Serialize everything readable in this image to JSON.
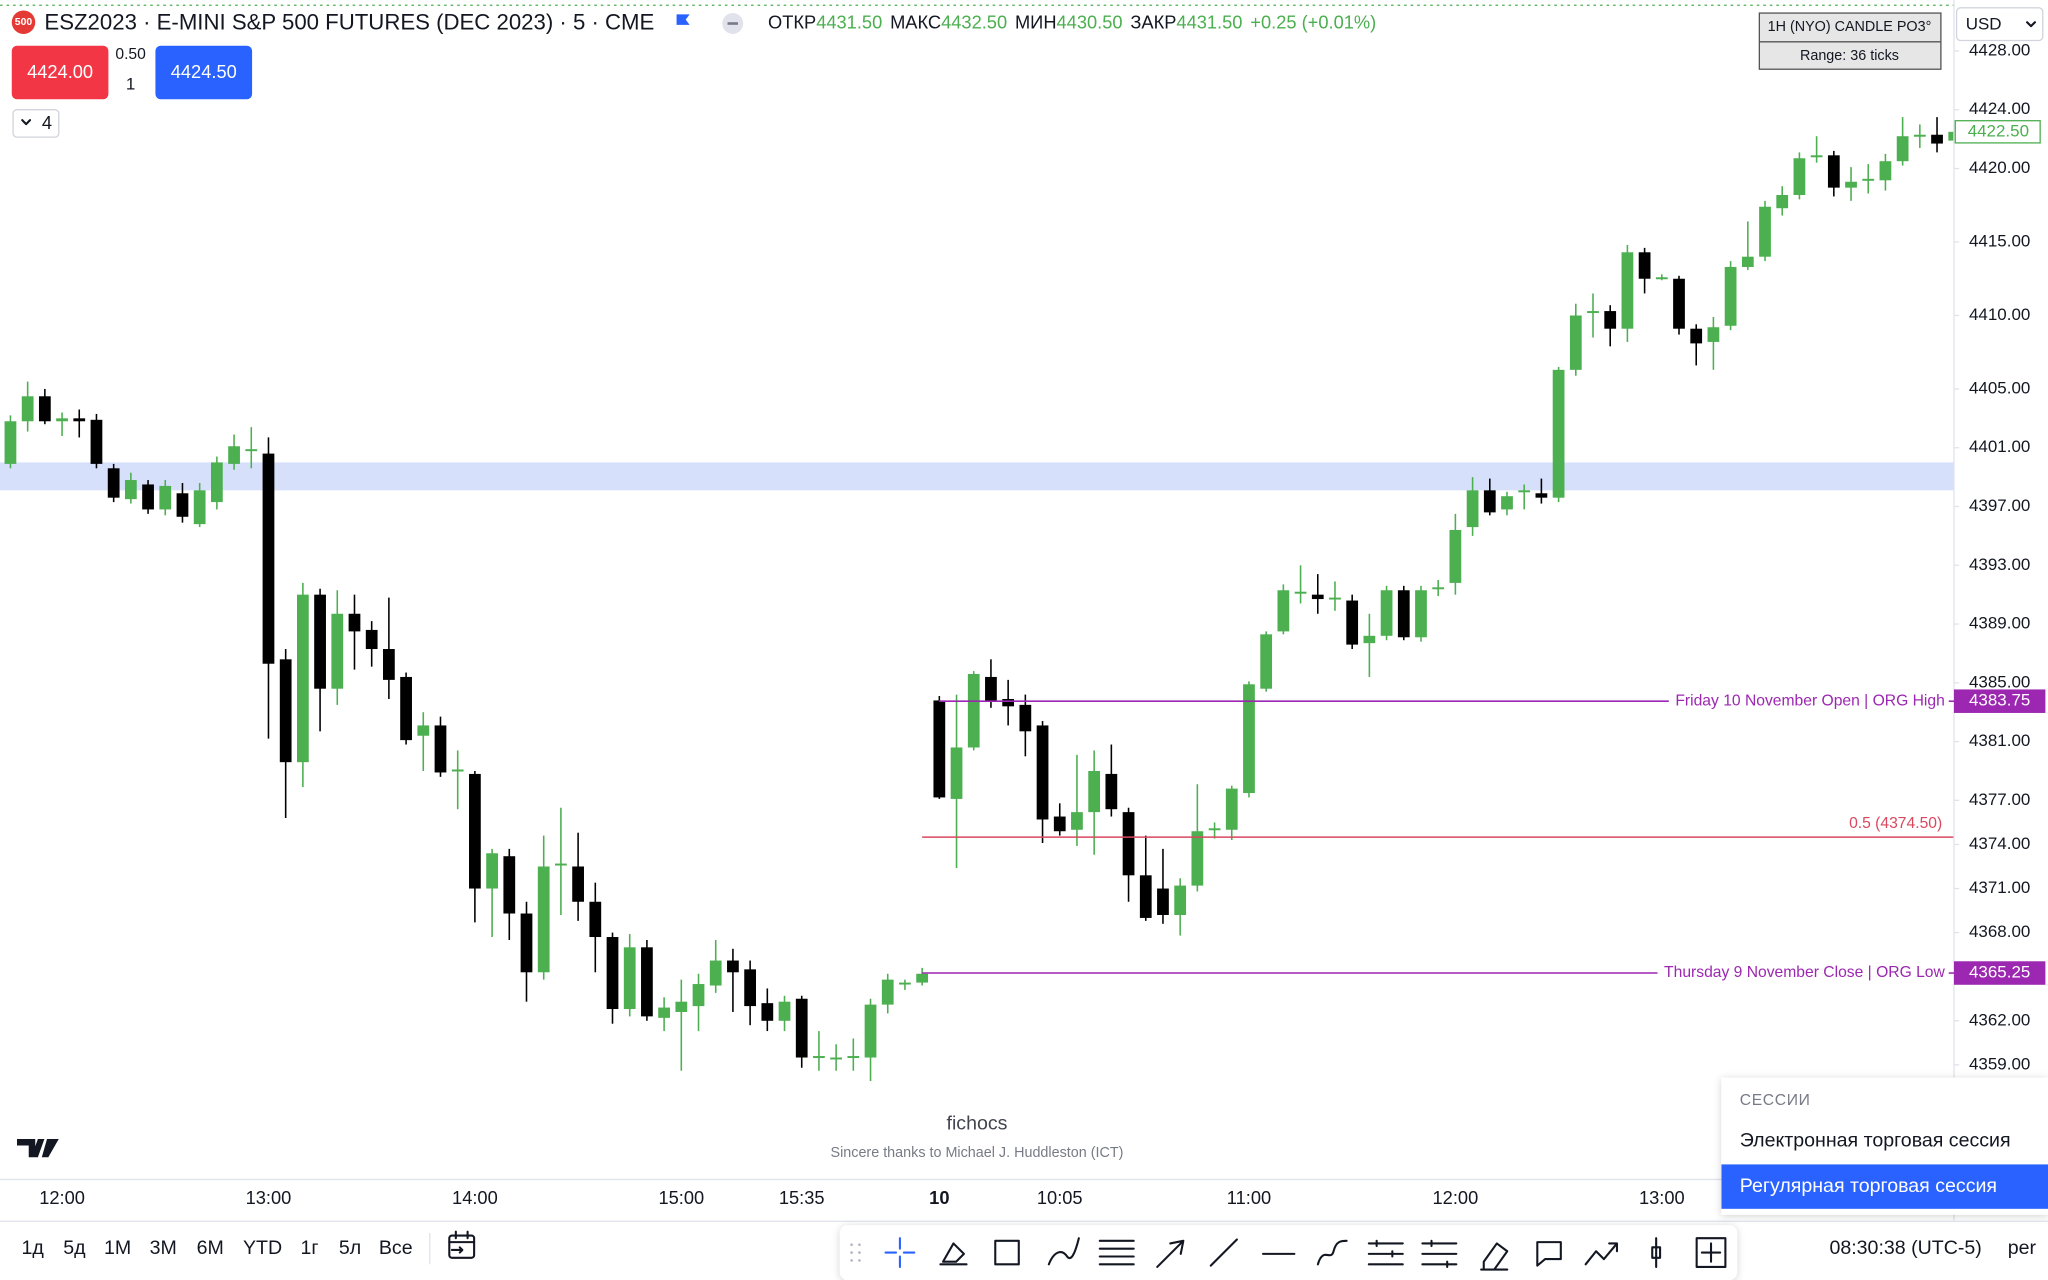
{
  "header": {
    "badge": "500",
    "symbol": "ESZ2023 · E-MINI S&P 500 FUTURES (DEC 2023) · 5 · CME",
    "ohlc": [
      {
        "label": "ОТКР",
        "value": "4431.50"
      },
      {
        "label": "МАКС",
        "value": "4432.50"
      },
      {
        "label": "МИН",
        "value": "4430.50"
      },
      {
        "label": "ЗАКР",
        "value": "4431.50"
      }
    ],
    "change": "+0.25 (+0.01%)"
  },
  "order_panel": {
    "sell": "4424.00",
    "spread": "0.50",
    "quantity": "1",
    "buy": "4424.50"
  },
  "indicators_toggle": "4",
  "info_box": [
    "1H (NYO) CANDLE PO3°",
    "Range: 36 ticks"
  ],
  "currency": "USD",
  "watermark": {
    "title": "fichocs",
    "subtitle": "Sincere thanks to Michael J. Huddleston (ICT)"
  },
  "timeframes": [
    "1д",
    "5д",
    "1М",
    "3М",
    "6М",
    "YTD",
    "1г",
    "5л",
    "Все"
  ],
  "clock": "08:30:38 (UTC-5)",
  "scale_mode": "per",
  "session_menu": {
    "heading": "СЕССИИ",
    "items": [
      "Электронная торговая сессия",
      "Регулярная торговая сессия"
    ],
    "selected": 1
  },
  "chart_data": {
    "type": "candlestick",
    "categories": [
      null,
      null,
      null,
      "12:00",
      null,
      null,
      null,
      null,
      null,
      null,
      null,
      null,
      null,
      null,
      null,
      "13:00",
      null,
      null,
      null,
      null,
      null,
      null,
      null,
      null,
      null,
      null,
      null,
      "14:00",
      null,
      null,
      null,
      null,
      null,
      null,
      null,
      null,
      null,
      null,
      null,
      "15:00",
      null,
      null,
      null,
      null,
      null,
      null,
      "15:35",
      null,
      null,
      null,
      null,
      null,
      null,
      null,
      "10",
      null,
      null,
      null,
      null,
      null,
      null,
      "10:05",
      null,
      null,
      null,
      null,
      null,
      null,
      null,
      null,
      null,
      null,
      "11:00",
      null,
      null,
      null,
      null,
      null,
      null,
      null,
      null,
      null,
      null,
      null,
      "12:00",
      null,
      null,
      null,
      null,
      null,
      null,
      null,
      null,
      null,
      null,
      null,
      "13:00",
      null,
      null,
      null,
      null,
      null,
      null,
      null,
      null,
      null,
      null,
      null,
      null,
      null,
      null,
      null,
      null,
      null
    ],
    "open": [
      4399.9,
      4402.8,
      4404.5,
      4402.8,
      4403.0,
      4402.9,
      4399.6,
      4397.5,
      4398.5,
      4396.8,
      4397.9,
      4395.8,
      4397.3,
      4399.9,
      4400.8,
      4400.6,
      4386.6,
      4379.6,
      4391.0,
      4384.6,
      4389.7,
      4388.6,
      4387.3,
      4385.4,
      4381.4,
      4382.1,
      4379.0,
      4378.8,
      4371.0,
      4373.2,
      4369.3,
      4365.3,
      4372.6,
      4372.5,
      4370.1,
      4367.7,
      4362.8,
      4367.0,
      4362.2,
      4362.6,
      4363.0,
      4364.4,
      4366.1,
      4365.5,
      4363.2,
      4362.0,
      4363.5,
      4359.5,
      4359.4,
      4359.5,
      4359.5,
      4363.1,
      4364.5,
      4364.6,
      4383.8,
      4377.1,
      4380.6,
      4385.4,
      4383.9,
      4383.5,
      4382.1,
      4375.9,
      4375.0,
      4376.2,
      4378.8,
      4376.2,
      4371.9,
      4371.0,
      4369.2,
      4371.2,
      4375.0,
      4375.0,
      4377.5,
      4384.6,
      4388.5,
      4391.1,
      4391.0,
      4390.7,
      4390.6,
      4387.7,
      4388.2,
      4391.3,
      4388.1,
      4391.4,
      4391.8,
      4395.6,
      4398.1,
      4396.8,
      4398.0,
      4397.9,
      4397.6,
      4406.3,
      4410.2,
      4410.3,
      4409.1,
      4414.3,
      4412.5,
      4412.5,
      4409.1,
      4408.2,
      4409.3,
      4413.3,
      4414.0,
      4417.3,
      4418.2,
      4420.8,
      4420.9,
      4418.7,
      4419.2,
      4419.2,
      4420.5,
      4422.2,
      4422.3,
      4421.9
    ],
    "high": [
      4403.2,
      4405.5,
      4405.0,
      4403.4,
      4403.6,
      4403.3,
      4399.9,
      4399.3,
      4398.8,
      4398.8,
      4398.6,
      4398.6,
      4400.4,
      4401.9,
      4402.4,
      4401.7,
      4387.3,
      4391.8,
      4391.4,
      4391.3,
      4391.0,
      4389.2,
      4390.8,
      4385.7,
      4383.0,
      4382.7,
      4380.4,
      4379.0,
      4373.7,
      4373.7,
      4370.1,
      4374.6,
      4376.5,
      4374.8,
      4371.4,
      4368.0,
      4367.9,
      4367.5,
      4363.6,
      4364.8,
      4365.2,
      4367.5,
      4366.9,
      4366.1,
      4364.2,
      4363.7,
      4363.7,
      4361.3,
      4360.4,
      4360.8,
      4363.5,
      4365.2,
      4364.8,
      4365.6,
      4384.1,
      4384.2,
      4385.8,
      4386.6,
      4385.2,
      4384.2,
      4382.4,
      4376.8,
      4380.1,
      4380.4,
      4380.8,
      4376.5,
      4374.6,
      4373.7,
      4371.7,
      4378.1,
      4375.5,
      4378.0,
      4385.1,
      4388.5,
      4391.7,
      4393.0,
      4392.4,
      4391.9,
      4391.0,
      4389.7,
      4391.6,
      4391.6,
      4391.6,
      4392.0,
      4396.5,
      4399.0,
      4398.9,
      4398.0,
      4398.5,
      4398.9,
      4406.5,
      4410.8,
      4411.5,
      4410.7,
      4414.8,
      4414.6,
      4412.8,
      4412.7,
      4409.4,
      4409.9,
      4413.7,
      4416.4,
      4417.8,
      4418.8,
      4421.1,
      4422.2,
      4421.2,
      4420.1,
      4420.3,
      4421.0,
      4423.5,
      4423.0,
      4423.5,
      4423.0
    ],
    "low": [
      4399.6,
      4402.1,
      4402.6,
      4401.8,
      4401.7,
      4399.6,
      4397.3,
      4397.2,
      4396.5,
      4396.4,
      4395.9,
      4395.6,
      4396.8,
      4399.5,
      4399.6,
      4381.2,
      4375.8,
      4377.9,
      4381.7,
      4383.5,
      4385.9,
      4386.1,
      4383.9,
      4380.8,
      4379.0,
      4378.6,
      4376.4,
      4368.7,
      4367.7,
      4367.5,
      4363.3,
      4364.8,
      4369.2,
      4368.8,
      4365.3,
      4361.8,
      4362.3,
      4362.0,
      4361.3,
      4358.6,
      4361.3,
      4363.9,
      4362.6,
      4361.7,
      4361.3,
      4361.3,
      4358.8,
      4358.6,
      4358.6,
      4358.6,
      4357.9,
      4362.5,
      4364.1,
      4364.4,
      4377.1,
      4372.4,
      4380.4,
      4383.3,
      4382.1,
      4380.0,
      4374.1,
      4374.6,
      4373.9,
      4373.3,
      4375.9,
      4370.1,
      4368.8,
      4368.6,
      4367.8,
      4370.8,
      4374.4,
      4374.3,
      4377.2,
      4384.4,
      4388.3,
      4390.4,
      4389.7,
      4389.9,
      4387.3,
      4385.4,
      4387.9,
      4387.9,
      4387.8,
      4390.9,
      4391.0,
      4395.0,
      4396.4,
      4396.4,
      4396.8,
      4397.2,
      4397.3,
      4405.9,
      4408.5,
      4407.9,
      4408.2,
      4411.5,
      4412.4,
      4408.7,
      4406.6,
      4406.3,
      4409.0,
      4413.1,
      4413.7,
      4416.8,
      4417.9,
      4420.4,
      4418.1,
      4417.8,
      4418.3,
      4418.5,
      4420.2,
      4421.4,
      4421.1,
      4421.7
    ],
    "close": [
      4402.8,
      4404.5,
      4402.8,
      4403.0,
      4402.8,
      4399.9,
      4397.6,
      4398.8,
      4396.8,
      4398.4,
      4396.3,
      4398.1,
      4400.0,
      4401.1,
      4400.9,
      4386.3,
      4379.6,
      4391.0,
      4384.6,
      4389.7,
      4388.5,
      4387.3,
      4385.2,
      4381.1,
      4382.1,
      4378.9,
      4379.1,
      4371.0,
      4373.4,
      4369.3,
      4365.3,
      4372.5,
      4372.7,
      4370.1,
      4367.7,
      4362.8,
      4367.0,
      4362.3,
      4362.9,
      4363.3,
      4364.5,
      4366.1,
      4365.3,
      4363.0,
      4362.0,
      4363.3,
      4359.5,
      4359.6,
      4359.5,
      4359.6,
      4363.1,
      4364.8,
      4364.6,
      4365.2,
      4377.2,
      4380.6,
      4385.6,
      4383.7,
      4383.4,
      4381.7,
      4375.7,
      4374.9,
      4376.2,
      4379.0,
      4376.4,
      4371.9,
      4369.0,
      4369.2,
      4371.2,
      4374.9,
      4375.1,
      4377.8,
      4384.9,
      4388.3,
      4391.3,
      4391.2,
      4390.7,
      4390.8,
      4387.6,
      4388.2,
      4391.3,
      4388.1,
      4391.3,
      4391.5,
      4395.4,
      4398.1,
      4396.6,
      4397.7,
      4398.1,
      4397.6,
      4406.3,
      4410.0,
      4410.3,
      4409.1,
      4414.3,
      4412.5,
      4412.6,
      4409.1,
      4408.1,
      4409.2,
      4413.3,
      4414.0,
      4417.4,
      4418.2,
      4420.7,
      4420.9,
      4418.7,
      4419.1,
      4419.3,
      4420.5,
      4422.2,
      4422.3,
      4421.7,
      4422.5
    ],
    "colors": {
      "up": "#4caf50",
      "down": "#000000"
    },
    "ylim": [
      4351.47,
      4431.47
    ],
    "yticks": [
      {
        "value": 4428,
        "label": "4428.00"
      },
      {
        "value": 4424,
        "label": "4424.00"
      },
      {
        "value": 4420,
        "label": "4420.00"
      },
      {
        "value": 4415,
        "label": "4415.00"
      },
      {
        "value": 4410,
        "label": "4410.00"
      },
      {
        "value": 4405,
        "label": "4405.00"
      },
      {
        "value": 4401,
        "label": "4401.00"
      },
      {
        "value": 4397,
        "label": "4397.00"
      },
      {
        "value": 4393,
        "label": "4393.00"
      },
      {
        "value": 4389,
        "label": "4389.00"
      },
      {
        "value": 4385,
        "label": "4385.00"
      },
      {
        "value": 4381,
        "label": "4381.00"
      },
      {
        "value": 4377,
        "label": "4377.00"
      },
      {
        "value": 4374,
        "label": "4374.00"
      },
      {
        "value": 4371,
        "label": "4371.00"
      },
      {
        "value": 4368,
        "label": "4368.00"
      },
      {
        "value": 4362,
        "label": "4362.00"
      },
      {
        "value": 4359,
        "label": "4359.00"
      }
    ],
    "zone": {
      "from": 4398.1,
      "to": 4400.0,
      "color": "#d6e0fb"
    },
    "levels": [
      {
        "label": "Friday 10 November Open | ORG High",
        "value": 4383.75,
        "color": "#9c27b0",
        "axis_label": true
      },
      {
        "label": "0.5 (4374.50)",
        "value": 4374.5,
        "color": "#d9485f",
        "axis_label": false
      },
      {
        "label": "Thursday 9 November Close | ORG  Low",
        "value": 4365.25,
        "color": "#9c27b0",
        "axis_label": true
      }
    ],
    "last_price": {
      "value": 4422.5,
      "label": "4422.50",
      "color": "#4caf50"
    }
  }
}
